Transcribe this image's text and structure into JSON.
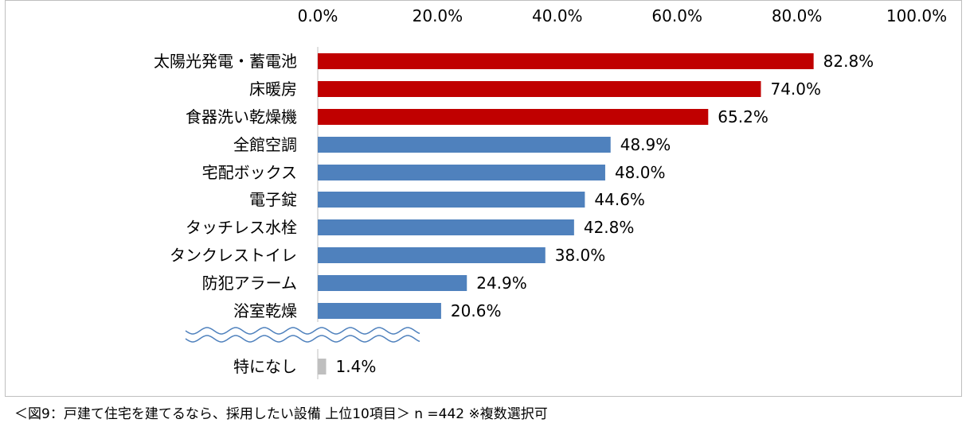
{
  "chart_data": {
    "type": "bar",
    "orientation": "horizontal",
    "title": "",
    "xlabel": "",
    "ylabel": "",
    "xlim": [
      0,
      100
    ],
    "x_ticks": [
      "0.0%",
      "20.0%",
      "40.0%",
      "60.0%",
      "80.0%",
      "100.0%"
    ],
    "axis_position": "top",
    "grid": false,
    "legend": "none",
    "categories": [
      "太陽光発電・蓄電池",
      "床暖房",
      "食器洗い乾燥機",
      "全館空調",
      "宅配ボックス",
      "電子錠",
      "タッチレス水栓",
      "タンクレストイレ",
      "防犯アラーム",
      "浴室乾燥",
      "特になし"
    ],
    "values": [
      82.8,
      74.0,
      65.2,
      48.9,
      48.0,
      44.6,
      42.8,
      38.0,
      24.9,
      20.6,
      1.4
    ],
    "data_labels": [
      "82.8%",
      "74.0%",
      "65.2%",
      "48.9%",
      "48.0%",
      "44.6%",
      "42.8%",
      "38.0%",
      "24.9%",
      "20.6%",
      "1.4%"
    ],
    "colors": [
      "#c00000",
      "#c00000",
      "#c00000",
      "#4f81bd",
      "#4f81bd",
      "#4f81bd",
      "#4f81bd",
      "#4f81bd",
      "#4f81bd",
      "#4f81bd",
      "#bfbfbf"
    ],
    "axis_break_after_index": 9
  },
  "caption": "＜図9：戸建て住宅を建てるなら、採用したい設備 上位10項目＞ n =442 ※複数選択可",
  "colors": {
    "highlight": "#c00000",
    "normal": "#4f81bd",
    "none": "#bfbfbf",
    "break_line": "#4f81bd"
  }
}
